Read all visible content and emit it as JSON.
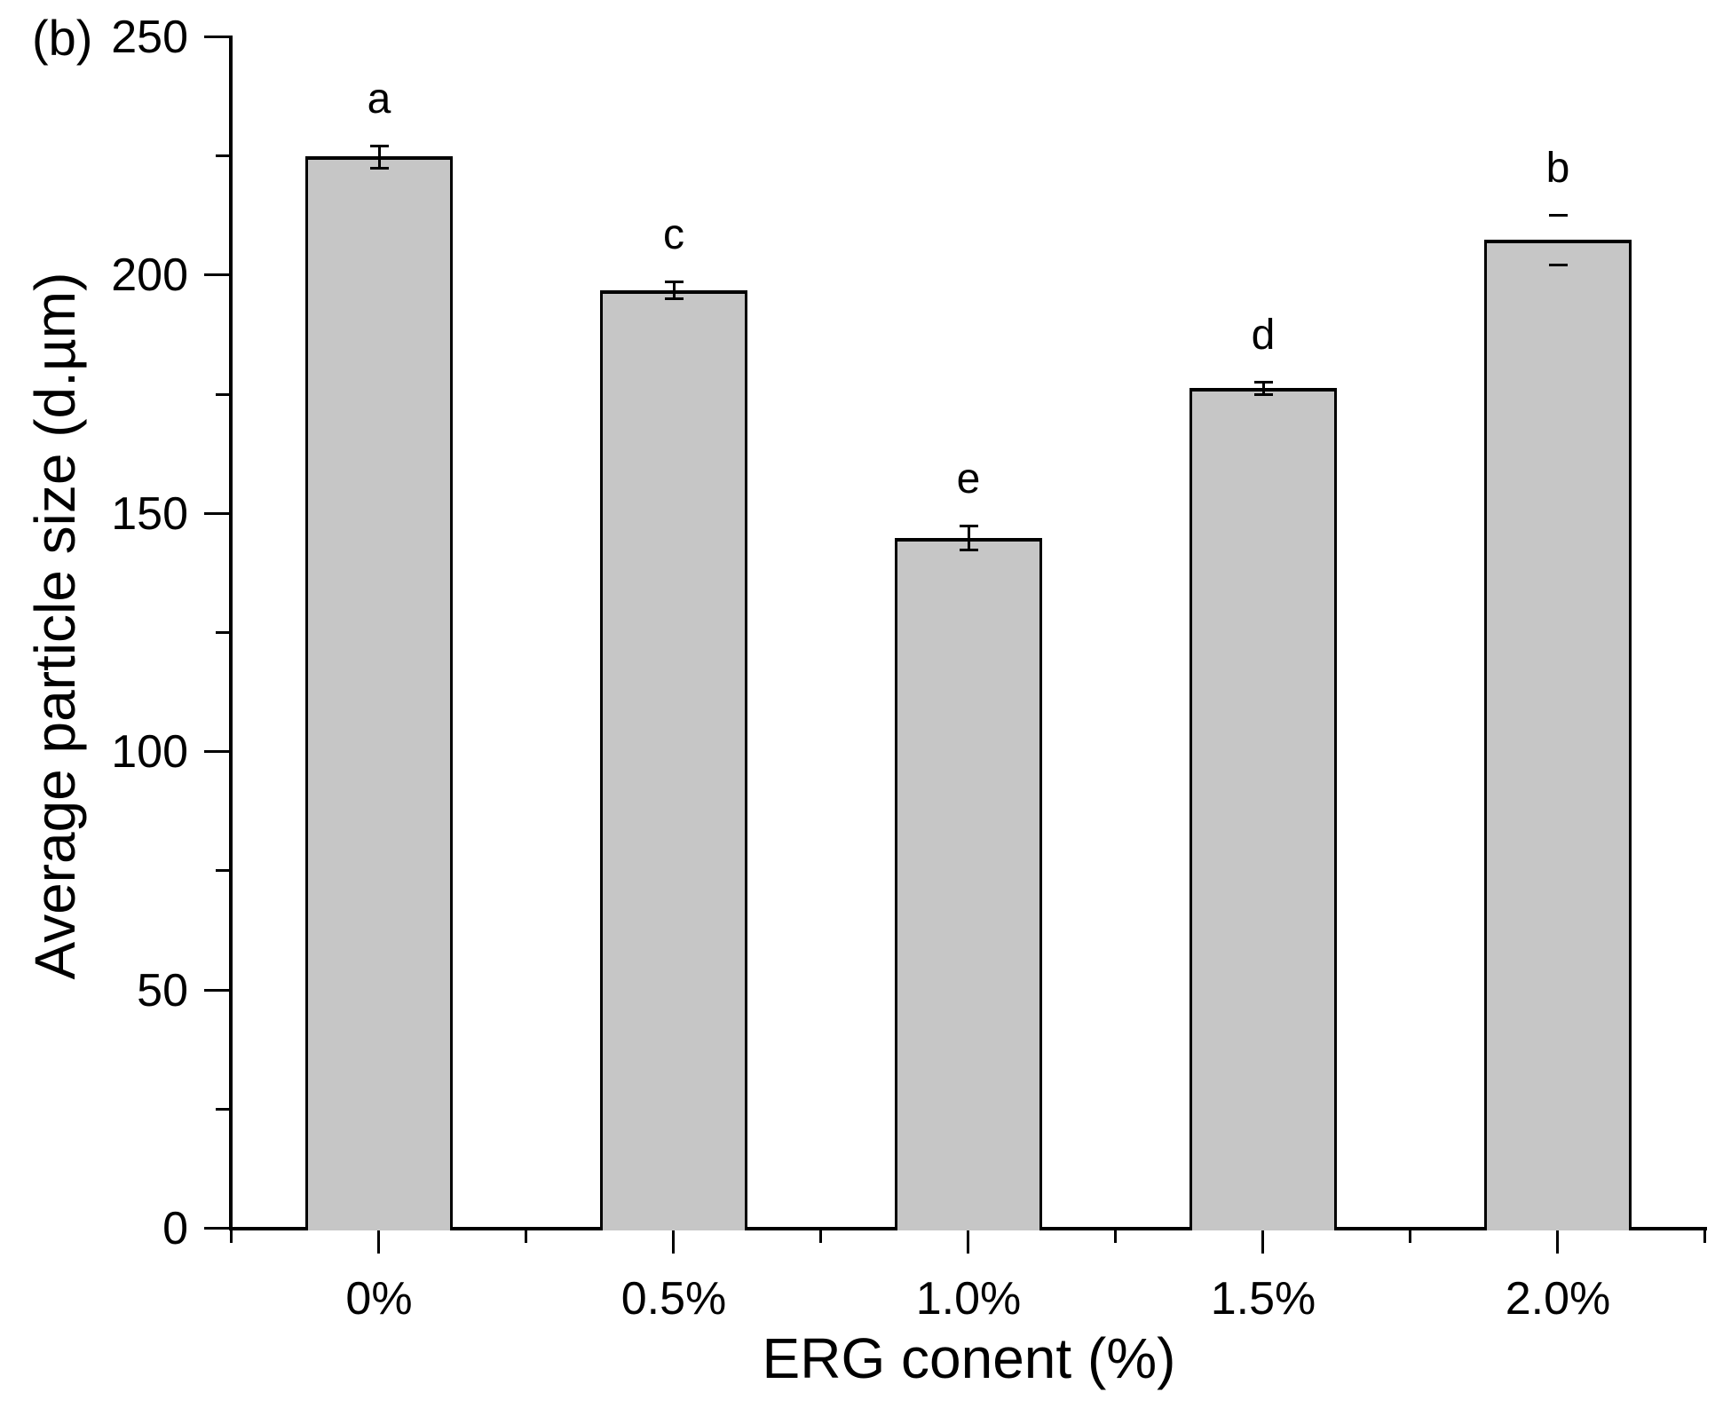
{
  "panel_label": "(b)",
  "chart_data": {
    "type": "bar",
    "title": "",
    "xlabel": "ERG conent (%)",
    "ylabel": "Average particle size (d.µm)",
    "categories": [
      "0%",
      "0.5%",
      "1.0%",
      "1.5%",
      "2.0%"
    ],
    "values": [
      225,
      197,
      145,
      176.5,
      207.5
    ],
    "errors": [
      2.3,
      1.7,
      2.5,
      1.3,
      5.2
    ],
    "error_cap_only": [
      false,
      false,
      false,
      false,
      true
    ],
    "sig_letters": [
      "a",
      "c",
      "e",
      "d",
      "b"
    ],
    "ylim": [
      0,
      250
    ],
    "y_major_ticks": [
      0,
      50,
      100,
      150,
      200,
      250
    ],
    "y_minor_ticks": [
      25,
      75,
      125,
      175,
      225
    ],
    "grid": false,
    "legend": null,
    "bar_fill": "#C6C6C6",
    "bar_border": "#000000",
    "axis_color": "#000000"
  }
}
